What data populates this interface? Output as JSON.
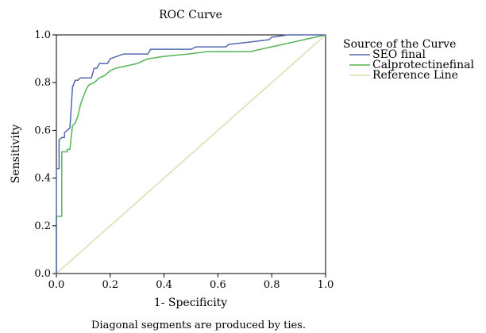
{
  "chart_data": {
    "type": "line",
    "title": "ROC Curve",
    "xlabel": "1- Specificity",
    "ylabel": "Sensitivity",
    "xlim": [
      0,
      1
    ],
    "ylim": [
      0,
      1
    ],
    "x_ticks": [
      "0.0",
      "0.2",
      "0.4",
      "0.6",
      "0.8",
      "1.0"
    ],
    "y_ticks": [
      "0.0",
      "0.2",
      "0.4",
      "0.6",
      "0.8",
      "1.0"
    ],
    "grid": false,
    "legend": {
      "title": "Source of the Curve",
      "placement": "right"
    },
    "footnote": "Diagonal segments are produced by ties.",
    "series": [
      {
        "name": "SEO final",
        "color": "#5468b0",
        "points": [
          [
            0,
            0
          ],
          [
            0,
            0.44
          ],
          [
            0.01,
            0.44
          ],
          [
            0.01,
            0.56
          ],
          [
            0.02,
            0.57
          ],
          [
            0.03,
            0.57
          ],
          [
            0.03,
            0.59
          ],
          [
            0.05,
            0.61
          ],
          [
            0.06,
            0.78
          ],
          [
            0.07,
            0.81
          ],
          [
            0.08,
            0.81
          ],
          [
            0.09,
            0.82
          ],
          [
            0.13,
            0.82
          ],
          [
            0.14,
            0.86
          ],
          [
            0.15,
            0.86
          ],
          [
            0.16,
            0.88
          ],
          [
            0.19,
            0.88
          ],
          [
            0.2,
            0.9
          ],
          [
            0.25,
            0.92
          ],
          [
            0.34,
            0.92
          ],
          [
            0.35,
            0.94
          ],
          [
            0.5,
            0.94
          ],
          [
            0.52,
            0.95
          ],
          [
            0.63,
            0.95
          ],
          [
            0.64,
            0.96
          ],
          [
            0.72,
            0.97
          ],
          [
            0.79,
            0.98
          ],
          [
            0.8,
            0.99
          ],
          [
            0.86,
            1
          ],
          [
            1,
            1
          ]
        ]
      },
      {
        "name": "Calprotectinefinal",
        "color": "#55b455",
        "points": [
          [
            0,
            0
          ],
          [
            0,
            0.24
          ],
          [
            0.02,
            0.24
          ],
          [
            0.02,
            0.51
          ],
          [
            0.04,
            0.51
          ],
          [
            0.04,
            0.52
          ],
          [
            0.05,
            0.52
          ],
          [
            0.06,
            0.62
          ],
          [
            0.07,
            0.63
          ],
          [
            0.08,
            0.66
          ],
          [
            0.09,
            0.71
          ],
          [
            0.1,
            0.74
          ],
          [
            0.11,
            0.77
          ],
          [
            0.12,
            0.79
          ],
          [
            0.14,
            0.8
          ],
          [
            0.16,
            0.82
          ],
          [
            0.18,
            0.83
          ],
          [
            0.2,
            0.85
          ],
          [
            0.22,
            0.86
          ],
          [
            0.26,
            0.87
          ],
          [
            0.3,
            0.88
          ],
          [
            0.34,
            0.9
          ],
          [
            0.4,
            0.91
          ],
          [
            0.49,
            0.92
          ],
          [
            0.56,
            0.93
          ],
          [
            0.72,
            0.93
          ],
          [
            1,
            1
          ]
        ]
      },
      {
        "name": "Reference Line",
        "color": "#dedcb0",
        "points": [
          [
            0,
            0
          ],
          [
            1,
            1
          ]
        ]
      }
    ]
  }
}
